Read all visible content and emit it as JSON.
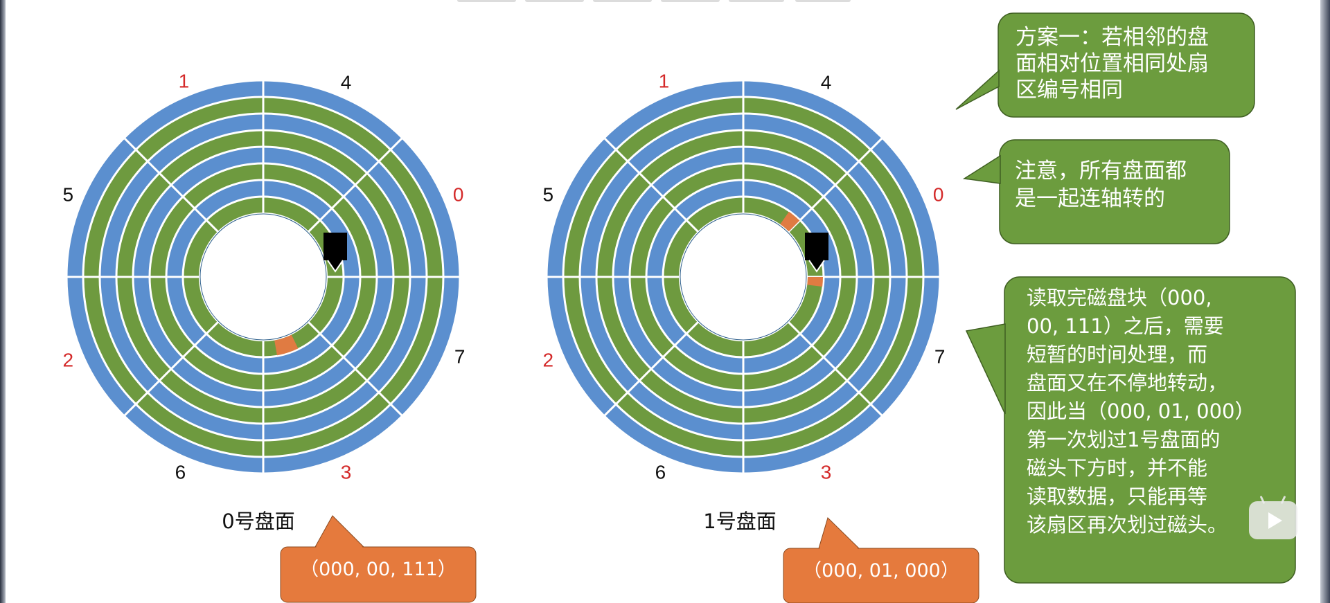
{
  "colors": {
    "blue": "#5b8fcf",
    "green": "#6e9a3f",
    "orange": "#e07b42",
    "head": "#000000",
    "red_label": "#d42a2a",
    "black_label": "#111111",
    "callout_green": "#6c9c3e",
    "callout_orange": "#e57a3d"
  },
  "disks": [
    {
      "caption": "0号盘面",
      "address": "（000, 00, 111）",
      "sector_labels": [
        {
          "text": "1",
          "color": "red"
        },
        {
          "text": "4",
          "color": "black"
        },
        {
          "text": "0",
          "color": "red"
        },
        {
          "text": "7",
          "color": "black"
        },
        {
          "text": "3",
          "color": "red"
        },
        {
          "text": "6",
          "color": "black"
        },
        {
          "text": "2",
          "color": "red"
        },
        {
          "text": "5",
          "color": "black"
        }
      ]
    },
    {
      "caption": "1号盘面",
      "address": "（000, 01, 000）",
      "sector_labels": [
        {
          "text": "1",
          "color": "red"
        },
        {
          "text": "4",
          "color": "black"
        },
        {
          "text": "0",
          "color": "red"
        },
        {
          "text": "7",
          "color": "black"
        },
        {
          "text": "3",
          "color": "red"
        },
        {
          "text": "6",
          "color": "black"
        },
        {
          "text": "2",
          "color": "red"
        },
        {
          "text": "5",
          "color": "black"
        }
      ]
    }
  ],
  "callouts": {
    "scheme": [
      "方案一：若相邻的盘",
      "面相对位置相同处扇",
      "区编号相同"
    ],
    "note": [
      "注意，所有盘面都",
      "是一起连轴转的"
    ],
    "explain": [
      "读取完磁盘块（000,",
      "00, 111）之后，需要",
      "短暂的时间处理，而",
      "盘面又在不停地转动，",
      "因此当（000, 01, 000）",
      "第一次划过1号盘面的",
      "磁头下方时，并不能",
      "读取数据，只能再等",
      "该扇区再次划过磁头。"
    ]
  }
}
